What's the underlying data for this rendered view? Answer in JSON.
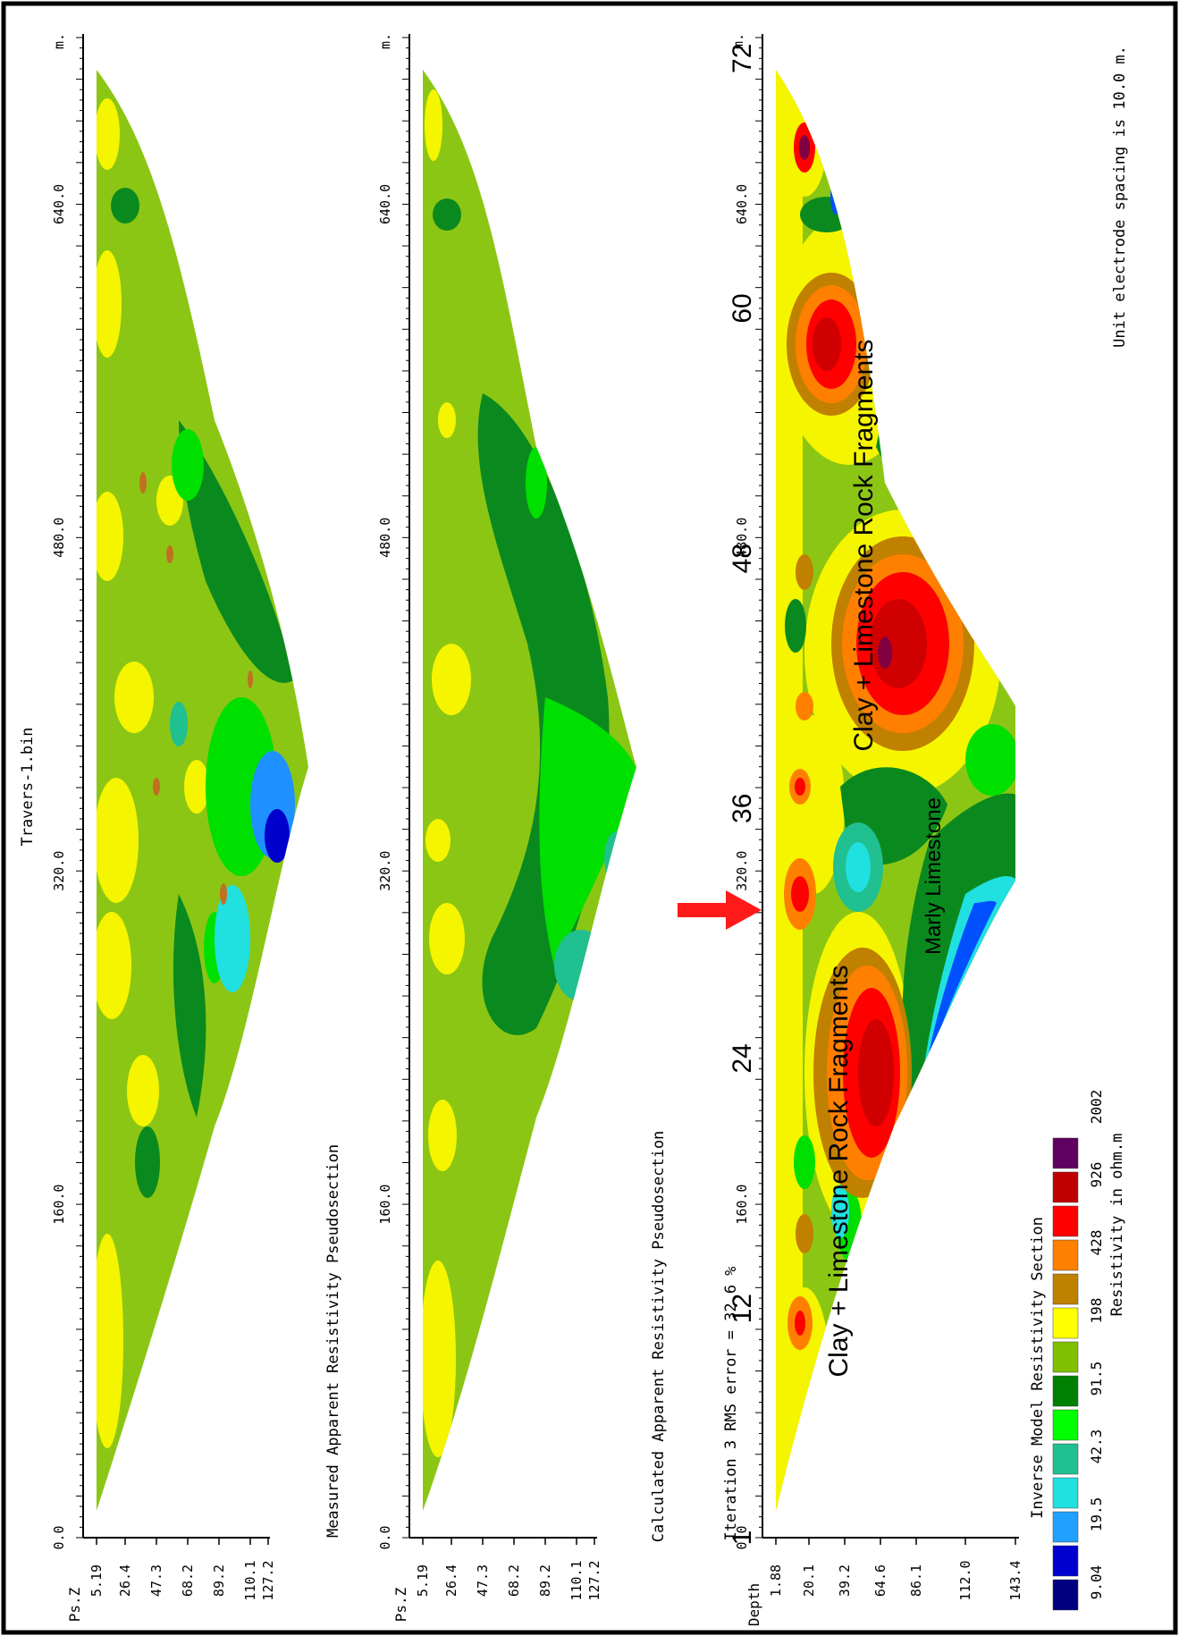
{
  "file_title": "Travers-1.bin",
  "spacing_note": "Unit electrode spacing is 10.0 m.",
  "unit_m": "m.",
  "rotated_distance_ticks": [
    "0.0",
    "160.0",
    "320.0",
    "480.0",
    "640.0"
  ],
  "panels": [
    {
      "title": "Measured Apparent Resistivity Pseudosection",
      "depth_label": "Ps.Z",
      "depth_ticks": [
        "5.19",
        "26.4",
        "47.3",
        "68.2",
        "89.2",
        "110.1",
        "127.2"
      ]
    },
    {
      "title": "Calculated Apparent Resistivity Pseudosection",
      "depth_label": "Ps.Z",
      "depth_ticks": [
        "5.19",
        "26.4",
        "47.3",
        "68.2",
        "89.2",
        "110.1",
        "127.2"
      ]
    },
    {
      "title": "Iteration 3 RMS error = 32.6 %",
      "depth_label": "Depth",
      "depth_ticks": [
        "1.88",
        "20.1",
        "39.2",
        "64.6",
        "86.1",
        "112.0",
        "143.4"
      ]
    }
  ],
  "electrode_ticks": [
    "1",
    "12",
    "24",
    "36",
    "48",
    "60",
    "72"
  ],
  "annotations": {
    "clay1": "Clay + Limestone Rock Fragments",
    "clay2": "Clay + Limestone Rock Fragments",
    "marly": "Marly Limestone"
  },
  "legend": {
    "title": "Inverse Model Resistivity Section",
    "unit_label": "Resistivity in ohm.m",
    "values": [
      "9.04",
      "19.5",
      "42.3",
      "91.5",
      "198",
      "428",
      "926",
      "2002"
    ],
    "colors": [
      "#000080",
      "#0000d0",
      "#0050ff",
      "#00ffff",
      "#20c090",
      "#00ff00",
      "#008000",
      "#80c000",
      "#ffff00",
      "#c08000",
      "#ff8000",
      "#ff0000",
      "#c00000",
      "#800040",
      "#600060"
    ]
  },
  "chart_data": {
    "type": "heatmap",
    "x_label": "",
    "x_ticks_m": [
      0.0,
      160.0,
      320.0,
      480.0,
      640.0
    ],
    "electrode_numbers": [
      1,
      12,
      24,
      36,
      48,
      60,
      72
    ],
    "electrode_spacing_m": 10.0,
    "rms_error_percent": 32.6,
    "arrow_marker_at_m": 320.0,
    "resistivity_contours_ohm_m": [
      9.04,
      19.5,
      42.3,
      91.5,
      198,
      428,
      926,
      2002
    ]
  }
}
